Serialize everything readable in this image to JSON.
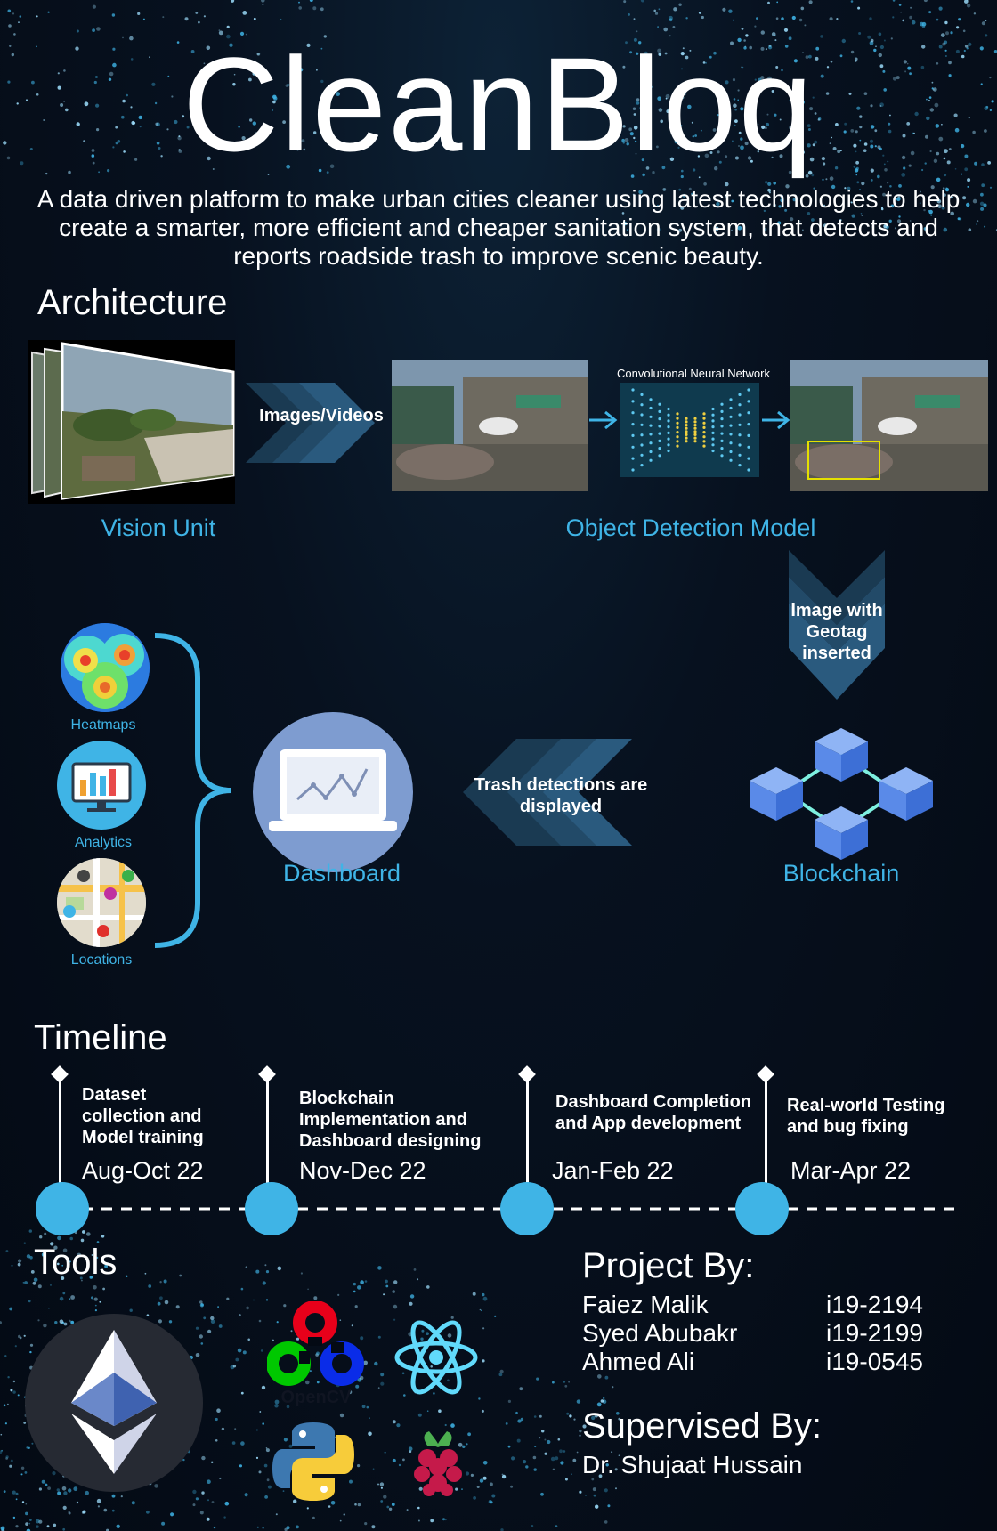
{
  "title": "CleanBloq",
  "subtitle": "A data driven platform to make urban cities cleaner using latest technologies to help create a smarter, more efficient and cheaper sanitation system, that detects and reports roadside trash to improve scenic beauty.",
  "architecture": {
    "heading": "Architecture",
    "vision_unit_label": "Vision Unit",
    "images_videos_label": "Images/Videos",
    "cnn_label": "Convolutional Neural Network",
    "object_detection_label": "Object Detection Model",
    "geotag_label": "Image with Geotag inserted",
    "blockchain_label": "Blockchain",
    "trash_detections_label": "Trash detections are displayed",
    "dashboard_label": "Dashboard",
    "features": [
      {
        "label": "Heatmaps",
        "icon": "heatmap-icon"
      },
      {
        "label": "Analytics",
        "icon": "analytics-icon"
      },
      {
        "label": "Locations",
        "icon": "map-locations-icon"
      }
    ]
  },
  "timeline": {
    "heading": "Timeline",
    "items": [
      {
        "title": "Dataset collection and Model training",
        "date": "Aug-Oct 22"
      },
      {
        "title": "Blockchain Implementation and Dashboard designing",
        "date": "Nov-Dec 22"
      },
      {
        "title": "Dashboard Completion and App development",
        "date": "Jan-Feb 22"
      },
      {
        "title": "Real-world Testing and bug fixing",
        "date": "Mar-Apr 22"
      }
    ]
  },
  "tools": {
    "heading": "Tools",
    "items": [
      {
        "name": "ethereum-icon"
      },
      {
        "name": "opencv-icon",
        "label": "OpenCV"
      },
      {
        "name": "react-icon"
      },
      {
        "name": "python-icon"
      },
      {
        "name": "raspberry-pi-icon"
      }
    ]
  },
  "project": {
    "heading": "Project By:",
    "members": [
      {
        "name": "Faiez Malik",
        "id": "i19-2194"
      },
      {
        "name": "Syed Abubakr",
        "id": "i19-2199"
      },
      {
        "name": "Ahmed Ali",
        "id": "i19-0545"
      }
    ]
  },
  "supervisor": {
    "heading": "Supervised By:",
    "name": "Dr. Shujaat Hussain"
  },
  "colors": {
    "accent": "#3fb4e6",
    "background": "#050b17",
    "chevron": "#1f4a68"
  }
}
